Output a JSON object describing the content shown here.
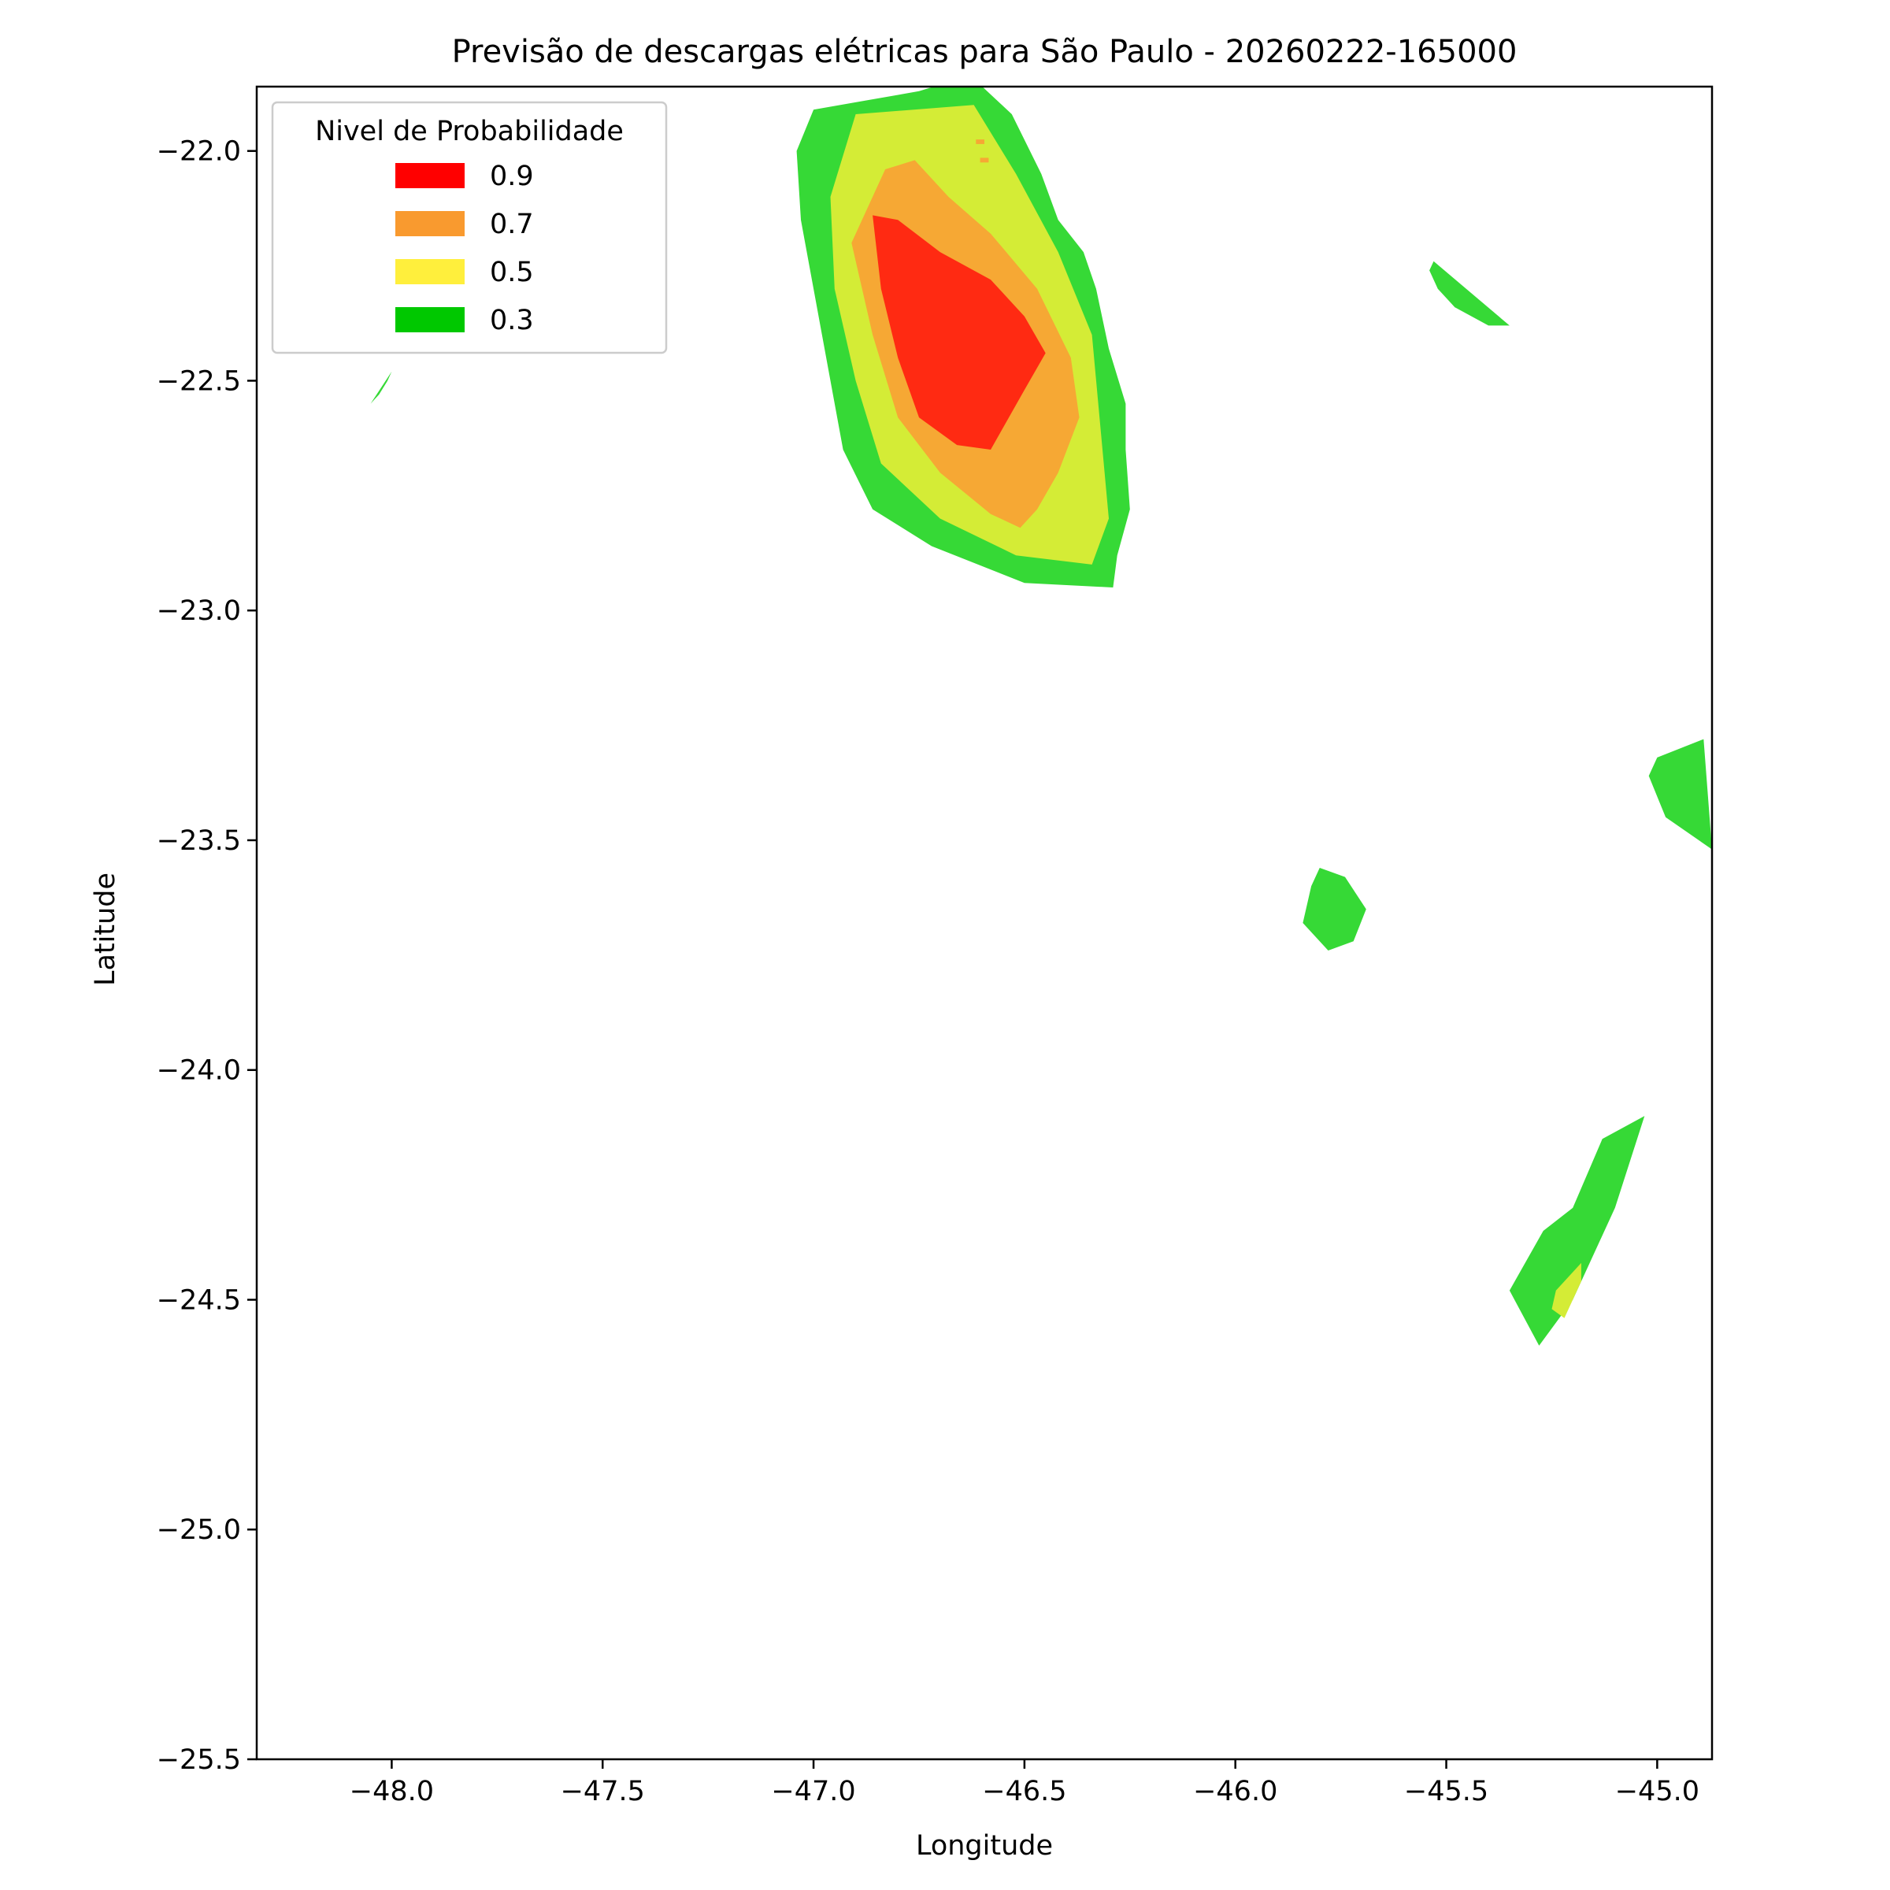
{
  "chart_data": {
    "type": "heatmap",
    "title": "Previsão de descargas elétricas para São Paulo - 20260222-165000",
    "xlabel": "Longitude",
    "ylabel": "Latitude",
    "xlim": [
      -48.32,
      -44.87
    ],
    "ylim": [
      -25.5,
      -21.86
    ],
    "grid": false,
    "x_ticks": [
      -48.0,
      -47.5,
      -47.0,
      -46.5,
      -46.0,
      -45.5,
      -45.0
    ],
    "x_tick_labels": [
      "−48.0",
      "−47.5",
      "−47.0",
      "−46.5",
      "−46.0",
      "−45.5",
      "−45.0"
    ],
    "y_ticks": [
      -22.0,
      -22.5,
      -23.0,
      -23.5,
      -24.0,
      -24.5,
      -25.0,
      -25.5
    ],
    "y_tick_labels": [
      "−22.0",
      "−22.5",
      "−23.0",
      "−23.5",
      "−24.0",
      "−24.5",
      "−25.0",
      "−25.5"
    ],
    "legend": {
      "title": "Nivel de Probabilidade",
      "position": "upper-left",
      "entries": [
        {
          "label": "0.9",
          "color": "#ff0000"
        },
        {
          "label": "0.7",
          "color": "#f99a2f"
        },
        {
          "label": "0.5",
          "color": "#ffef3c"
        },
        {
          "label": "0.3",
          "color": "#00c800"
        }
      ]
    },
    "fill_colors": {
      "0.3": "#36d936",
      "0.5": "#d4ec36",
      "0.7": "#f6a834",
      "0.9": "#ff2a12"
    },
    "regions": [
      {
        "name": "main-storm-0.3",
        "level": "0.3",
        "points": [
          [
            -47.0,
            -21.91
          ],
          [
            -46.75,
            -21.87
          ],
          [
            -46.68,
            -21.85
          ],
          [
            -46.6,
            -21.86
          ],
          [
            -46.53,
            -21.92
          ],
          [
            -46.46,
            -22.05
          ],
          [
            -46.42,
            -22.15
          ],
          [
            -46.36,
            -22.22
          ],
          [
            -46.33,
            -22.3
          ],
          [
            -46.3,
            -22.43
          ],
          [
            -46.26,
            -22.55
          ],
          [
            -46.26,
            -22.65
          ],
          [
            -46.25,
            -22.78
          ],
          [
            -46.28,
            -22.88
          ],
          [
            -46.29,
            -22.95
          ],
          [
            -46.5,
            -22.94
          ],
          [
            -46.72,
            -22.86
          ],
          [
            -46.86,
            -22.78
          ],
          [
            -46.93,
            -22.65
          ],
          [
            -46.98,
            -22.4
          ],
          [
            -47.03,
            -22.15
          ],
          [
            -47.04,
            -22.0
          ]
        ]
      },
      {
        "name": "main-storm-0.5",
        "level": "0.5",
        "points": [
          [
            -46.9,
            -21.92
          ],
          [
            -46.62,
            -21.9
          ],
          [
            -46.52,
            -22.05
          ],
          [
            -46.42,
            -22.22
          ],
          [
            -46.34,
            -22.4
          ],
          [
            -46.32,
            -22.6
          ],
          [
            -46.3,
            -22.8
          ],
          [
            -46.34,
            -22.9
          ],
          [
            -46.52,
            -22.88
          ],
          [
            -46.7,
            -22.8
          ],
          [
            -46.84,
            -22.68
          ],
          [
            -46.9,
            -22.5
          ],
          [
            -46.95,
            -22.3
          ],
          [
            -46.96,
            -22.1
          ]
        ]
      },
      {
        "name": "main-storm-0.7",
        "level": "0.7",
        "points": [
          [
            -46.83,
            -22.04
          ],
          [
            -46.76,
            -22.02
          ],
          [
            -46.68,
            -22.1
          ],
          [
            -46.58,
            -22.18
          ],
          [
            -46.47,
            -22.3
          ],
          [
            -46.39,
            -22.45
          ],
          [
            -46.37,
            -22.58
          ],
          [
            -46.42,
            -22.7
          ],
          [
            -46.47,
            -22.78
          ],
          [
            -46.51,
            -22.82
          ],
          [
            -46.58,
            -22.79
          ],
          [
            -46.7,
            -22.7
          ],
          [
            -46.8,
            -22.58
          ],
          [
            -46.86,
            -22.4
          ],
          [
            -46.91,
            -22.2
          ]
        ]
      },
      {
        "name": "main-storm-0.9",
        "level": "0.9",
        "points": [
          [
            -46.86,
            -22.14
          ],
          [
            -46.8,
            -22.15
          ],
          [
            -46.7,
            -22.22
          ],
          [
            -46.58,
            -22.28
          ],
          [
            -46.5,
            -22.36
          ],
          [
            -46.45,
            -22.44
          ],
          [
            -46.5,
            -22.52
          ],
          [
            -46.58,
            -22.65
          ],
          [
            -46.66,
            -22.64
          ],
          [
            -46.75,
            -22.58
          ],
          [
            -46.8,
            -22.45
          ],
          [
            -46.84,
            -22.3
          ]
        ]
      },
      {
        "name": "main-storm-0.7-specks",
        "level": "0.7",
        "points": [
          [
            -46.615,
            -21.975
          ],
          [
            -46.595,
            -21.975
          ],
          [
            -46.595,
            -21.985
          ],
          [
            -46.615,
            -21.985
          ]
        ]
      },
      {
        "name": "main-storm-0.7-specks-2",
        "level": "0.7",
        "points": [
          [
            -46.605,
            -22.015
          ],
          [
            -46.585,
            -22.015
          ],
          [
            -46.585,
            -22.025
          ],
          [
            -46.605,
            -22.025
          ]
        ]
      },
      {
        "name": "cell-ne-0.3",
        "level": "0.3",
        "points": [
          [
            -45.53,
            -22.24
          ],
          [
            -45.35,
            -22.38
          ],
          [
            -45.4,
            -22.38
          ],
          [
            -45.48,
            -22.34
          ],
          [
            -45.52,
            -22.3
          ],
          [
            -45.54,
            -22.26
          ]
        ]
      },
      {
        "name": "cell-w-0.3",
        "level": "0.3",
        "points": [
          [
            -48.0,
            -22.48
          ],
          [
            -48.05,
            -22.55
          ],
          [
            -48.03,
            -22.53
          ],
          [
            -48.01,
            -22.5
          ]
        ]
      },
      {
        "name": "cell-e-0.3",
        "level": "0.3",
        "points": [
          [
            -45.0,
            -23.32
          ],
          [
            -44.89,
            -23.28
          ],
          [
            -44.87,
            -23.52
          ],
          [
            -44.98,
            -23.45
          ],
          [
            -45.02,
            -23.36
          ]
        ]
      },
      {
        "name": "cell-center-0.3",
        "level": "0.3",
        "points": [
          [
            -45.8,
            -23.56
          ],
          [
            -45.74,
            -23.58
          ],
          [
            -45.69,
            -23.65
          ],
          [
            -45.72,
            -23.72
          ],
          [
            -45.78,
            -23.74
          ],
          [
            -45.84,
            -23.68
          ],
          [
            -45.82,
            -23.6
          ]
        ]
      },
      {
        "name": "cell-se-0.3",
        "level": "0.3",
        "points": [
          [
            -45.03,
            -24.1
          ],
          [
            -45.13,
            -24.15
          ],
          [
            -45.2,
            -24.3
          ],
          [
            -45.27,
            -24.35
          ],
          [
            -45.35,
            -24.48
          ],
          [
            -45.28,
            -24.6
          ],
          [
            -45.2,
            -24.5
          ],
          [
            -45.1,
            -24.3
          ]
        ]
      },
      {
        "name": "cell-se-0.5",
        "level": "0.5",
        "points": [
          [
            -45.18,
            -24.42
          ],
          [
            -45.24,
            -24.48
          ],
          [
            -45.25,
            -24.52
          ],
          [
            -45.22,
            -24.54
          ],
          [
            -45.18,
            -24.46
          ]
        ]
      }
    ]
  }
}
